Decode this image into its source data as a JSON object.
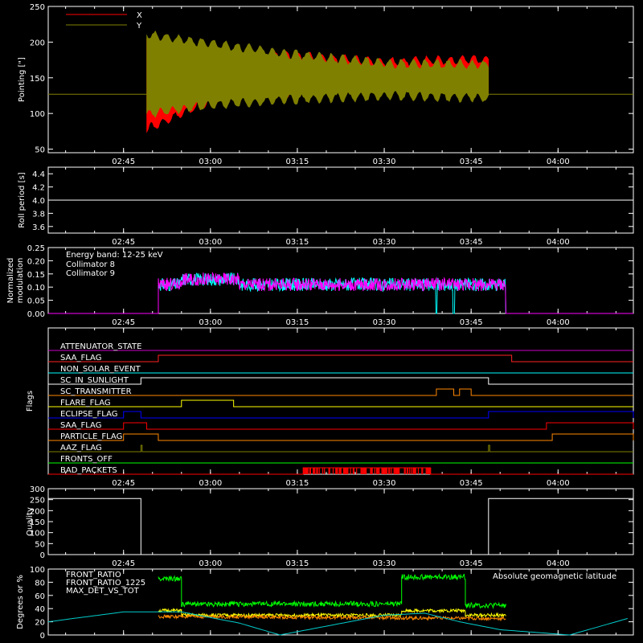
{
  "time_ticks": [
    "02:45",
    "03:00",
    "03:15",
    "03:30",
    "03:45",
    "04:00"
  ],
  "chart_data": [
    {
      "id": "pointing",
      "type": "line",
      "ylabel": "Pointing [\"]",
      "ylim": [
        45,
        250
      ],
      "yticks": [
        "50",
        "100",
        "150",
        "200",
        "250"
      ],
      "legend": [
        {
          "name": "X",
          "color": "#ff0000"
        },
        {
          "name": "Y",
          "color": "#808000"
        }
      ],
      "series": [
        {
          "name": "X",
          "color": "#ff0000",
          "envelope": [
            {
              "t": "02:49",
              "min": 78,
              "max": 200
            },
            {
              "t": "03:00",
              "min": 118,
              "max": 188
            },
            {
              "t": "03:15",
              "min": 128,
              "max": 180
            },
            {
              "t": "03:30",
              "min": 135,
              "max": 172
            },
            {
              "t": "03:48",
              "min": 130,
              "max": 176
            }
          ]
        },
        {
          "name": "Y",
          "color": "#808000",
          "envelope": [
            {
              "t": "02:49",
              "min": 100,
              "max": 210
            },
            {
              "t": "03:00",
              "min": 112,
              "max": 198
            },
            {
              "t": "03:15",
              "min": 120,
              "max": 182
            },
            {
              "t": "03:30",
              "min": 125,
              "max": 170
            },
            {
              "t": "03:48",
              "min": 122,
              "max": 168
            }
          ]
        }
      ],
      "baseline": 127,
      "active_range": [
        "02:49",
        "03:48"
      ]
    },
    {
      "id": "roll",
      "type": "line",
      "ylabel": "Roll period [s]",
      "ylim": [
        3.5,
        4.5
      ],
      "yticks": [
        "3.6",
        "3.8",
        "4.0",
        "4.2",
        "4.4"
      ],
      "series": [
        {
          "name": "",
          "color": "#ffffff",
          "constant": 4.0
        }
      ]
    },
    {
      "id": "modulation",
      "type": "line",
      "ylabel": "Normalized modulation",
      "ylim": [
        0,
        0.25
      ],
      "yticks": [
        "0.00",
        "0.05",
        "0.10",
        "0.15",
        "0.20",
        "0.25"
      ],
      "annotation": "Energy band: 12-25 keV",
      "legend": [
        {
          "name": "Collimator 8",
          "color": "#00ffff"
        },
        {
          "name": "Collimator 9",
          "color": "#ff00ff"
        }
      ],
      "series": [
        {
          "name": "Collimator 8",
          "color": "#00ffff",
          "range": [
            "02:51",
            "03:51"
          ],
          "level": 0.11,
          "dropouts": [
            "03:39",
            "03:42"
          ]
        },
        {
          "name": "Collimator 9",
          "color": "#ff00ff",
          "range": [
            "02:51",
            "03:51"
          ],
          "level": 0.11
        }
      ]
    },
    {
      "id": "flags",
      "type": "line",
      "ylabel": "Flags",
      "flags": [
        {
          "name": "ATTENUATOR_STATE",
          "color": "#cc00cc",
          "segments": []
        },
        {
          "name": "SAA_FLAG",
          "color": "#ff2222",
          "segments": [
            [
              "02:51",
              "03:52"
            ]
          ]
        },
        {
          "name": "NON_SOLAR_EVENT",
          "color": "#00ffff",
          "segments": []
        },
        {
          "name": "SC_IN_SUNLIGHT",
          "color": "#ffffff",
          "segments": [
            [
              "02:48",
              "03:48"
            ]
          ]
        },
        {
          "name": "SC_TRANSMITTER",
          "color": "#ff8800",
          "segments": [
            [
              "03:39",
              "03:42"
            ],
            [
              "03:43",
              "03:45"
            ]
          ]
        },
        {
          "name": "FLARE_FLAG",
          "color": "#ffff00",
          "segments": [
            [
              "02:55",
              "03:04"
            ]
          ]
        },
        {
          "name": "ECLIPSE_FLAG",
          "color": "#0000ff",
          "segments": [
            [
              "02:45",
              "02:48"
            ],
            [
              "03:48",
              "04:13"
            ]
          ]
        },
        {
          "name": "SAA_FLAG",
          "color": "#ff0000",
          "segments": [
            [
              "02:45",
              "02:49"
            ],
            [
              "03:58",
              "04:13"
            ]
          ]
        },
        {
          "name": "PARTICLE_FLAG",
          "color": "#ff8800",
          "segments": [
            [
              "02:45",
              "02:51"
            ],
            [
              "03:59",
              "04:13"
            ]
          ]
        },
        {
          "name": "AAZ_FLAG",
          "color": "#808000",
          "segments": [
            [
              "02:48",
              "02:48"
            ],
            [
              "03:48",
              "03:48"
            ]
          ]
        },
        {
          "name": "FRONTS_OFF",
          "color": "#00ff00",
          "segments": []
        },
        {
          "name": "BAD_PACKETS",
          "color": "#ff0000",
          "segments": [
            [
              "03:16",
              "03:38"
            ]
          ]
        }
      ]
    },
    {
      "id": "quality",
      "type": "line",
      "ylabel": "Quality",
      "ylim": [
        0,
        300
      ],
      "yticks": [
        "0",
        "50",
        "100",
        "150",
        "200",
        "250",
        "300"
      ],
      "series": [
        {
          "name": "",
          "color": "#ffffff",
          "steps": [
            {
              "t": "02:32",
              "v": 255
            },
            {
              "t": "02:48",
              "v": 0
            },
            {
              "t": "03:48",
              "v": 255
            }
          ]
        }
      ]
    },
    {
      "id": "ratios",
      "type": "line",
      "ylabel": "Degrees or %",
      "ylim": [
        0,
        100
      ],
      "yticks": [
        "0",
        "20",
        "40",
        "60",
        "80",
        "100"
      ],
      "legend": [
        {
          "name": "FRONT_RATIO",
          "color": "#ffff00"
        },
        {
          "name": "FRONT_RATIO_1225",
          "color": "#00ff00"
        },
        {
          "name": "MAX_DET_VS_TOT",
          "color": "#ff8800"
        }
      ],
      "annotation": "Absolute geomagnetic latitude",
      "series": [
        {
          "name": "FRONT_RATIO",
          "color": "#ffff00",
          "points": [
            [
              "02:51",
              37
            ],
            [
              "02:55",
              37
            ],
            [
              "02:55",
              30
            ],
            [
              "03:33",
              30
            ],
            [
              "03:33",
              37
            ],
            [
              "03:44",
              37
            ],
            [
              "03:44",
              30
            ],
            [
              "03:51",
              30
            ]
          ]
        },
        {
          "name": "FRONT_RATIO_1225",
          "color": "#00ff00",
          "points": [
            [
              "02:51",
              85
            ],
            [
              "02:55",
              85
            ],
            [
              "02:55",
              47
            ],
            [
              "03:33",
              47
            ],
            [
              "03:33",
              88
            ],
            [
              "03:44",
              88
            ],
            [
              "03:44",
              45
            ],
            [
              "03:51",
              45
            ]
          ]
        },
        {
          "name": "MAX_DET_VS_TOT",
          "color": "#ff8800",
          "points": [
            [
              "02:51",
              28
            ],
            [
              "03:51",
              25
            ]
          ]
        },
        {
          "name": "Absolute geomagnetic latitude",
          "color": "#00cccc",
          "points": [
            [
              "02:32",
              20
            ],
            [
              "02:45",
              35
            ],
            [
              "02:55",
              35
            ],
            [
              "03:05",
              18
            ],
            [
              "03:12",
              0
            ],
            [
              "03:30",
              30
            ],
            [
              "03:37",
              33
            ],
            [
              "03:43",
              20
            ],
            [
              "03:50",
              8
            ],
            [
              "04:02",
              0
            ],
            [
              "04:12",
              25
            ]
          ]
        }
      ]
    }
  ]
}
